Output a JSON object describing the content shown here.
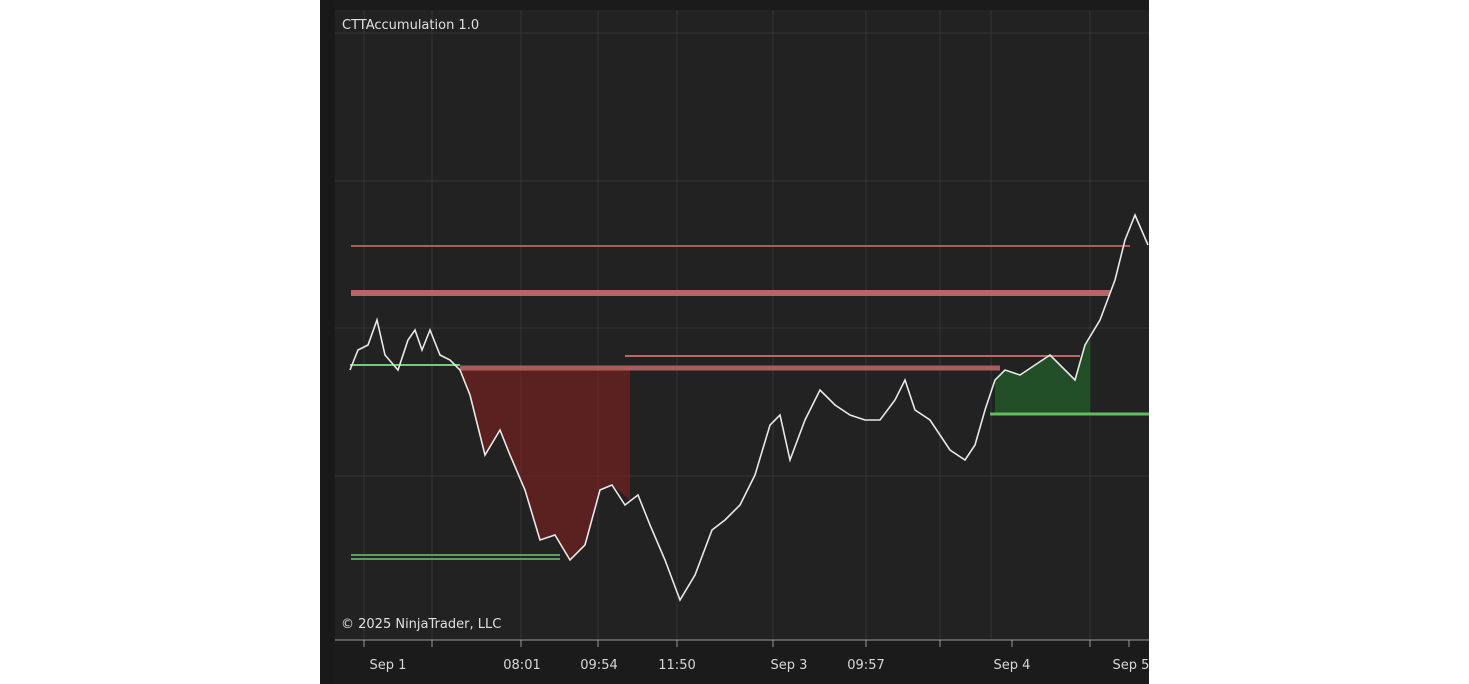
{
  "title": "CTTAccumulation 1.0",
  "copyright": "© 2025 NinjaTrader, LLC",
  "x_axis": {
    "labels": [
      "Sep 1",
      "08:01",
      "09:54",
      "11:50",
      "Sep 3",
      "09:57",
      "Sep 4",
      "Sep 5"
    ]
  }
}
